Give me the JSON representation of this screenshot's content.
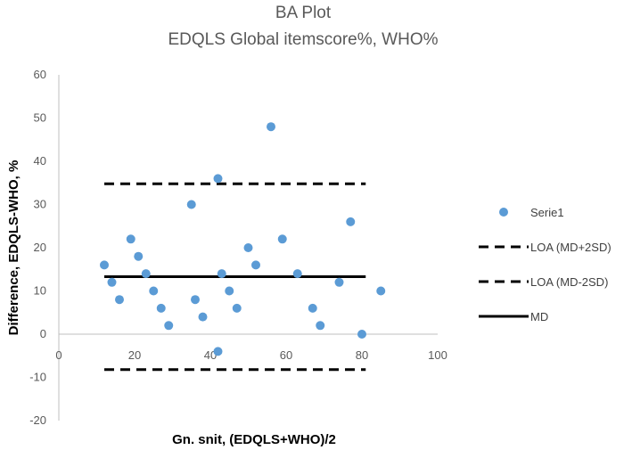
{
  "chart_data": {
    "type": "scatter",
    "title": "BA Plot",
    "subtitle": "EDQLS Global itemscore%, WHO%",
    "xlabel": "Gn. snit, (EDQLS+WHO)/2",
    "ylabel": "Difference, EDQLS-WHO, %",
    "xlim": [
      0,
      100
    ],
    "ylim": [
      -20,
      60
    ],
    "x_ticks": [
      "0",
      "20",
      "40",
      "60",
      "80",
      "100"
    ],
    "y_ticks": [
      "-20",
      "-10",
      "0",
      "10",
      "20",
      "30",
      "40",
      "50",
      "60"
    ],
    "grid": false,
    "legend_position": "right",
    "series": [
      {
        "name": "Serie1",
        "kind": "points",
        "color": "#5b9bd5",
        "points": [
          {
            "x": 12,
            "y": 16
          },
          {
            "x": 14,
            "y": 12
          },
          {
            "x": 16,
            "y": 8
          },
          {
            "x": 19,
            "y": 22
          },
          {
            "x": 21,
            "y": 18
          },
          {
            "x": 23,
            "y": 14
          },
          {
            "x": 25,
            "y": 10
          },
          {
            "x": 27,
            "y": 6
          },
          {
            "x": 29,
            "y": 2
          },
          {
            "x": 35,
            "y": 30
          },
          {
            "x": 36,
            "y": 8
          },
          {
            "x": 38,
            "y": 4
          },
          {
            "x": 42,
            "y": 36
          },
          {
            "x": 42,
            "y": -4
          },
          {
            "x": 43,
            "y": 14
          },
          {
            "x": 45,
            "y": 10
          },
          {
            "x": 47,
            "y": 6
          },
          {
            "x": 50,
            "y": 20
          },
          {
            "x": 52,
            "y": 16
          },
          {
            "x": 56,
            "y": 48
          },
          {
            "x": 59,
            "y": 22
          },
          {
            "x": 63,
            "y": 14
          },
          {
            "x": 67,
            "y": 6
          },
          {
            "x": 69,
            "y": 2
          },
          {
            "x": 74,
            "y": 12
          },
          {
            "x": 77,
            "y": 26
          },
          {
            "x": 80,
            "y": 0
          },
          {
            "x": 85,
            "y": 10
          }
        ]
      },
      {
        "name": "LOA (MD+2SD)",
        "kind": "dashed-line",
        "color": "#000000",
        "points": [
          {
            "x": 12,
            "y": 34.8
          },
          {
            "x": 81,
            "y": 34.8
          }
        ]
      },
      {
        "name": "LOA (MD-2SD)",
        "kind": "dashed-line",
        "color": "#000000",
        "points": [
          {
            "x": 12,
            "y": -8.2
          },
          {
            "x": 81,
            "y": -8.2
          }
        ]
      },
      {
        "name": "MD",
        "kind": "solid-line",
        "color": "#000000",
        "points": [
          {
            "x": 12,
            "y": 13.3
          },
          {
            "x": 81,
            "y": 13.3
          }
        ]
      }
    ]
  }
}
